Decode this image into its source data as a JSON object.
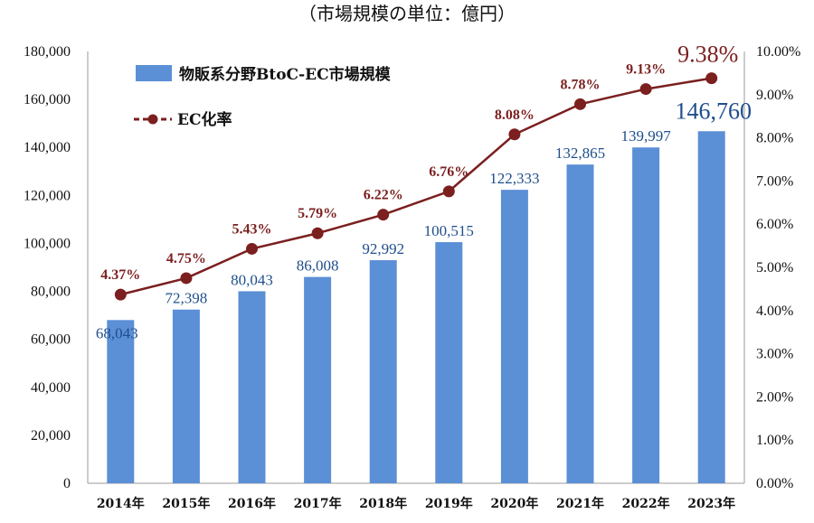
{
  "header": {
    "unit_note": "（市場規模の単位：億円）"
  },
  "colors": {
    "bar": "#5B8FD6",
    "line": "#7B1F1F",
    "bar_label": "#1F4E8C",
    "axis": "#999999"
  },
  "chart_data": {
    "type": "bar+line",
    "categories": [
      "2014年",
      "2015年",
      "2016年",
      "2017年",
      "2018年",
      "2019年",
      "2020年",
      "2021年",
      "2022年",
      "2023年"
    ],
    "series": [
      {
        "name": "物販系分野BtoC-EC市場規模",
        "type": "bar",
        "axis": "left",
        "values": [
          68043,
          72398,
          80043,
          86008,
          92992,
          100515,
          122333,
          132865,
          139997,
          146760
        ],
        "labels": [
          "68,043",
          "72,398",
          "80,043",
          "86,008",
          "92,992",
          "100,515",
          "122,333",
          "132,865",
          "139,997",
          "146,760"
        ]
      },
      {
        "name": "EC化率",
        "type": "line",
        "axis": "right",
        "values": [
          4.37,
          4.75,
          5.43,
          5.79,
          6.22,
          6.76,
          8.08,
          8.78,
          9.13,
          9.38
        ],
        "labels": [
          "4.37%",
          "4.75%",
          "5.43%",
          "5.79%",
          "6.22%",
          "6.76%",
          "8.08%",
          "8.78%",
          "9.13%",
          "9.38%"
        ]
      }
    ],
    "y_left": {
      "range": [
        0,
        180000
      ],
      "ticks": [
        0,
        20000,
        40000,
        60000,
        80000,
        100000,
        120000,
        140000,
        160000,
        180000
      ],
      "tick_labels": [
        "0",
        "20,000",
        "40,000",
        "60,000",
        "80,000",
        "100,000",
        "120,000",
        "140,000",
        "160,000",
        "180,000"
      ]
    },
    "y_right": {
      "range": [
        0,
        10
      ],
      "ticks": [
        0,
        1,
        2,
        3,
        4,
        5,
        6,
        7,
        8,
        9,
        10
      ],
      "tick_labels": [
        "0.00%",
        "1.00%",
        "2.00%",
        "3.00%",
        "4.00%",
        "5.00%",
        "6.00%",
        "7.00%",
        "8.00%",
        "9.00%",
        "10.00%"
      ]
    },
    "grid": false,
    "legend_position": "top-left",
    "legend": [
      "物販系分野BtoC-EC市場規模",
      "EC化率"
    ]
  }
}
